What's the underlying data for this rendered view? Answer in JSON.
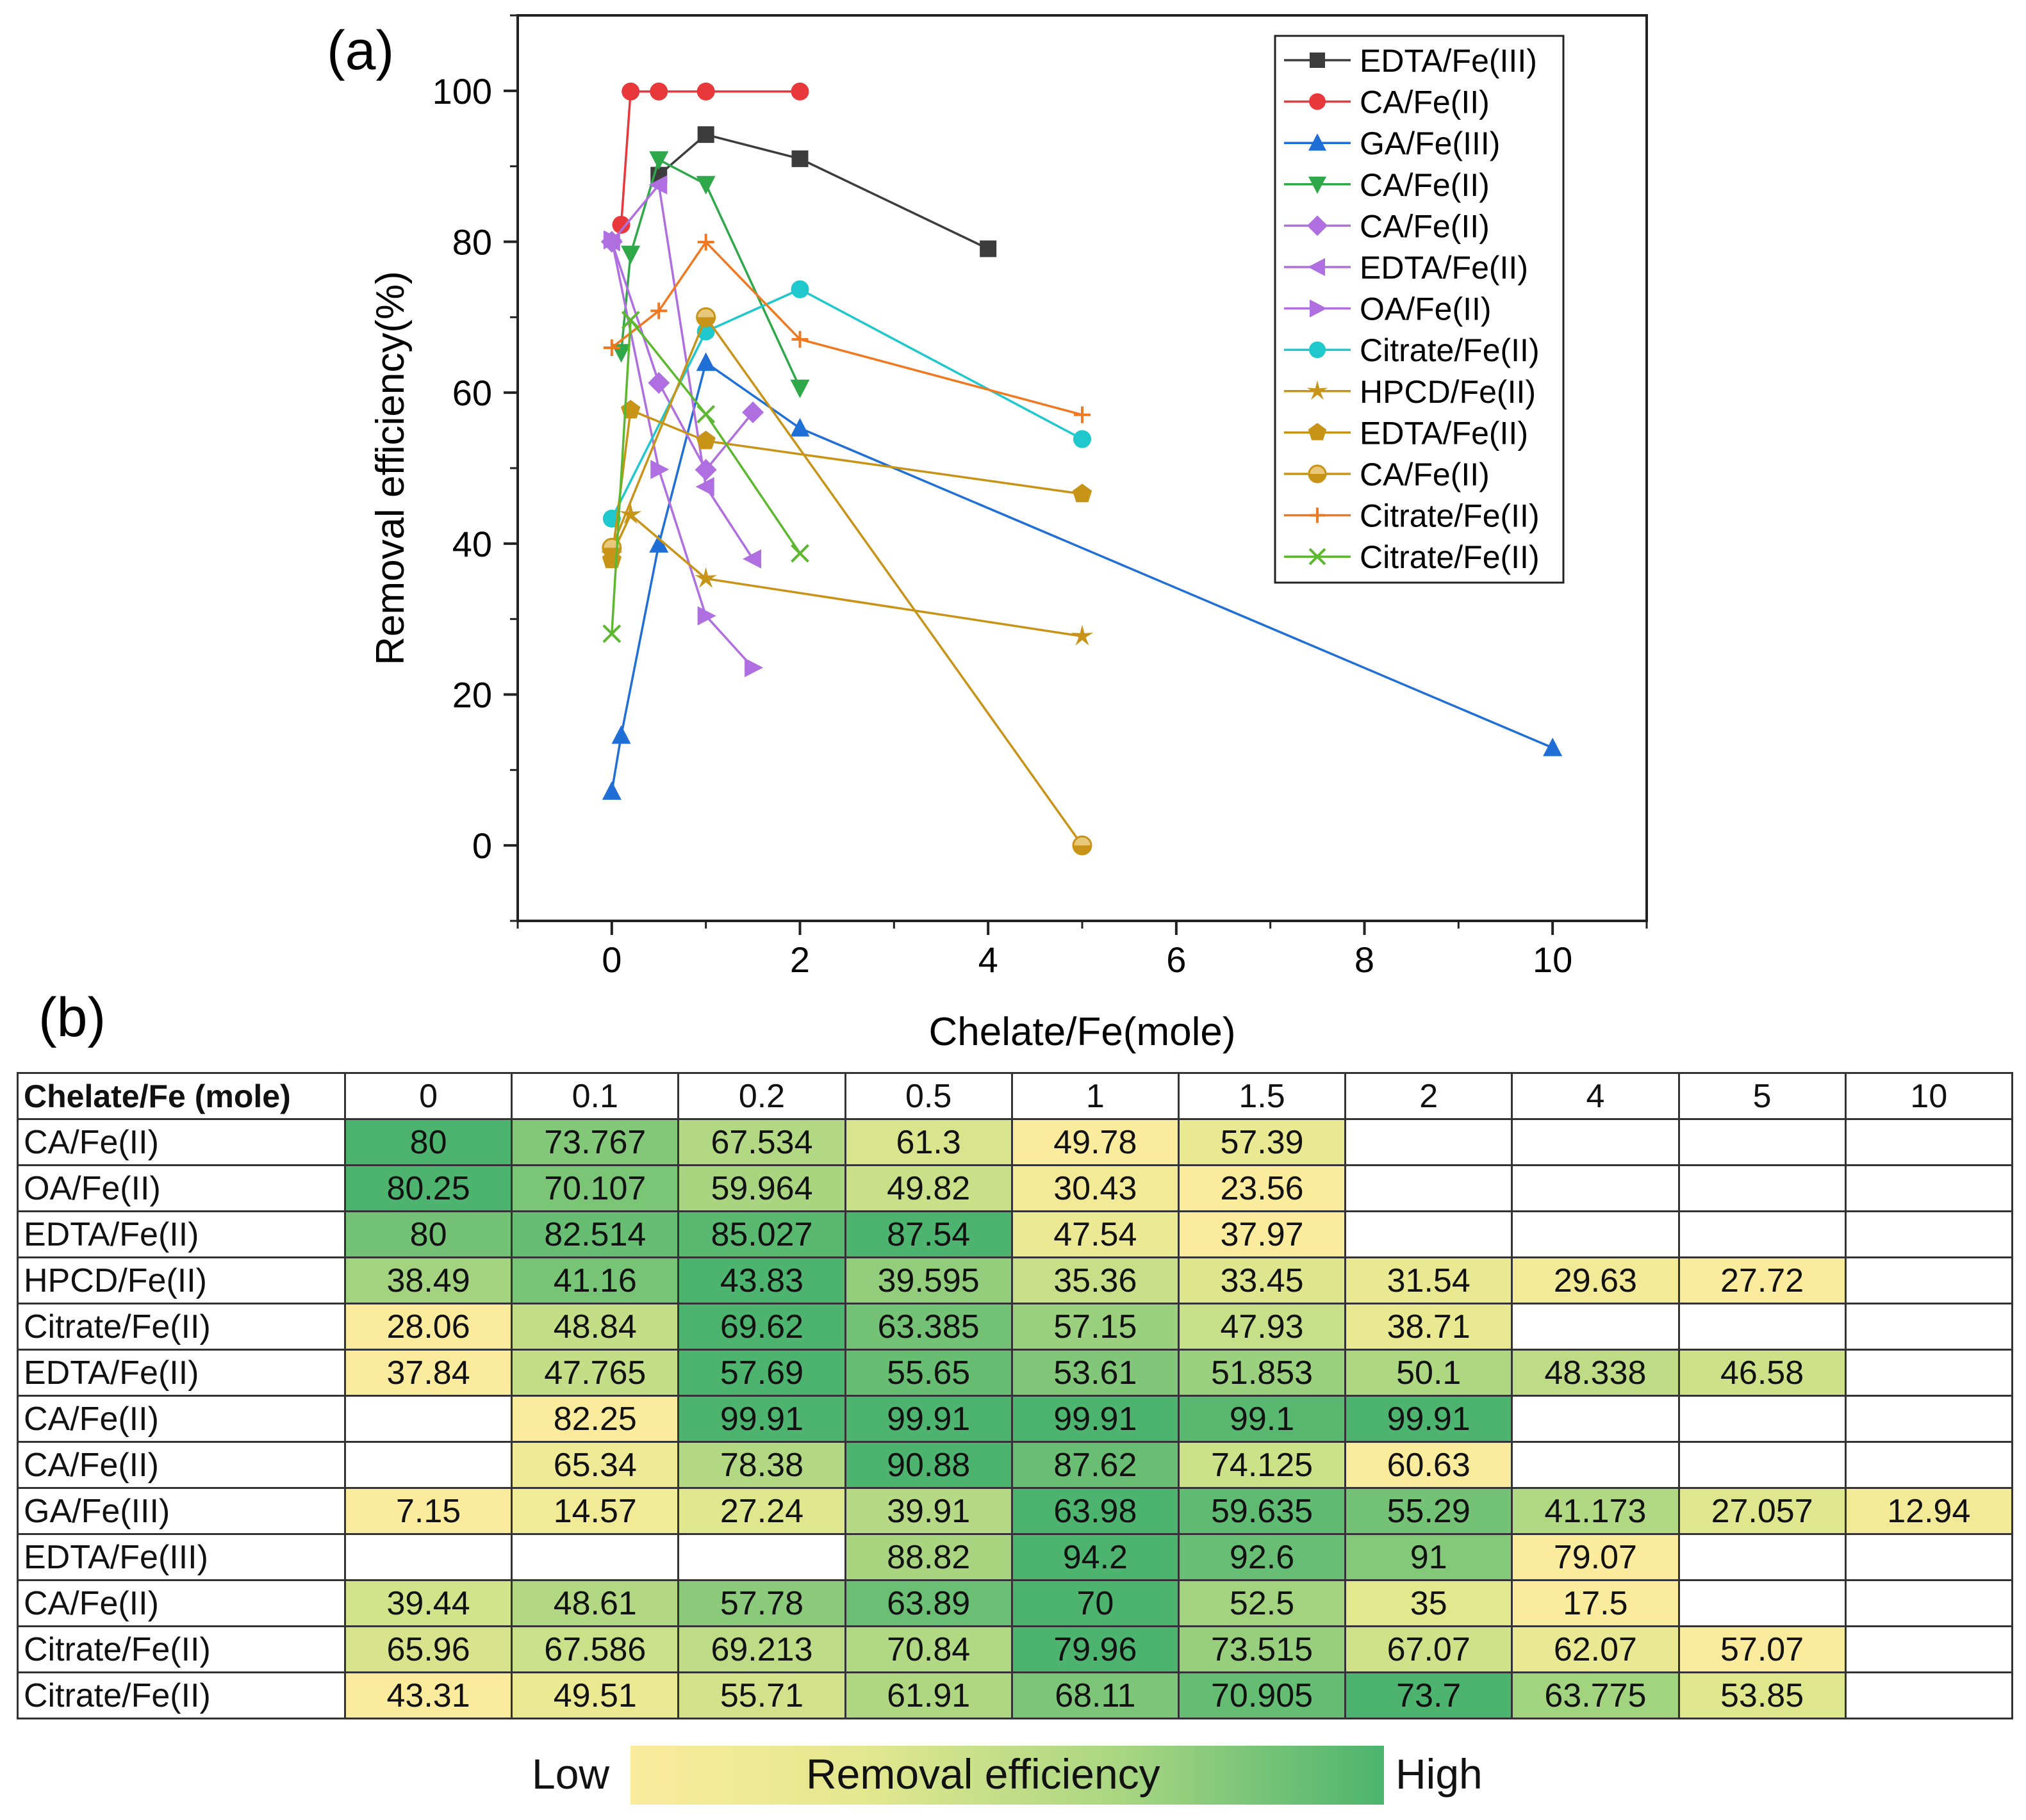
{
  "panel_a_label": "(a)",
  "panel_b_label": "(b)",
  "colors": {
    "black": "#3c3c3c",
    "red": "#e8383c",
    "blue": "#1f6fd6",
    "green": "#2fa84a",
    "purple": "#b06fe0",
    "cyan": "#1fc8cc",
    "gold": "#c89418",
    "orange": "#f07820",
    "lime": "#5cb82e"
  },
  "chart_data": [
    {
      "type": "line",
      "xlabel": "Chelate/Fe(mole)",
      "ylabel": "Removal efficiency(%)",
      "xlim": [
        -1,
        11
      ],
      "ylim": [
        -10,
        110
      ],
      "xticks": [
        0,
        2,
        4,
        6,
        8,
        10
      ],
      "yticks": [
        0,
        20,
        40,
        60,
        80,
        100
      ],
      "xtick_labels": [
        "0",
        "2",
        "4",
        "6",
        "8",
        "10"
      ],
      "ytick_labels": [
        "0",
        "20",
        "40",
        "60",
        "80",
        "100"
      ],
      "legend_position": "top-right",
      "series": [
        {
          "name": "EDTA/Fe(III)",
          "color": "#3c3c3c",
          "marker": "square",
          "x": [
            0.5,
            1,
            2,
            4
          ],
          "y": [
            88.82,
            94.2,
            91,
            79.07
          ]
        },
        {
          "name": "CA/Fe(II)",
          "color": "#e8383c",
          "marker": "circle",
          "x": [
            0.1,
            0.2,
            0.5,
            1,
            2
          ],
          "y": [
            82.25,
            99.91,
            99.91,
            99.91,
            99.91
          ]
        },
        {
          "name": "GA/Fe(III)",
          "color": "#1f6fd6",
          "marker": "triangle-up",
          "x": [
            0,
            0.1,
            0.5,
            1,
            2,
            10
          ],
          "y": [
            7.15,
            14.57,
            39.91,
            63.98,
            55.29,
            12.94
          ]
        },
        {
          "name": "CA/Fe(II)",
          "color": "#2fa84a",
          "marker": "triangle-down",
          "x": [
            0.1,
            0.2,
            0.5,
            1,
            2
          ],
          "y": [
            65.34,
            78.38,
            90.88,
            87.62,
            60.63
          ]
        },
        {
          "name": "CA/Fe(II)",
          "color": "#b06fe0",
          "marker": "diamond",
          "x": [
            0,
            0.5,
            1,
            1.5
          ],
          "y": [
            80,
            61.3,
            49.78,
            57.39
          ]
        },
        {
          "name": "EDTA/Fe(II)",
          "color": "#b06fe0",
          "marker": "triangle-left",
          "x": [
            0,
            0.5,
            1,
            1.5
          ],
          "y": [
            80,
            87.54,
            47.54,
            37.97
          ]
        },
        {
          "name": "OA/Fe(II)",
          "color": "#b06fe0",
          "marker": "triangle-right",
          "x": [
            0,
            0.5,
            1,
            1.5
          ],
          "y": [
            80.25,
            49.82,
            30.43,
            23.56
          ]
        },
        {
          "name": "Citrate/Fe(II)",
          "color": "#1fc8cc",
          "marker": "circle",
          "x": [
            0,
            1,
            2,
            5
          ],
          "y": [
            43.31,
            68.11,
            73.7,
            53.85
          ]
        },
        {
          "name": "HPCD/Fe(II)",
          "color": "#c89418",
          "marker": "star",
          "x": [
            0,
            0.2,
            1,
            5
          ],
          "y": [
            38.49,
            43.83,
            35.36,
            27.72
          ]
        },
        {
          "name": "EDTA/Fe(II)",
          "color": "#c89418",
          "marker": "pentagon",
          "x": [
            0,
            0.2,
            1,
            5
          ],
          "y": [
            37.84,
            57.69,
            53.61,
            46.58
          ]
        },
        {
          "name": "CA/Fe(II)",
          "color": "#c89418",
          "marker": "half-circle",
          "x": [
            0,
            1,
            5
          ],
          "y": [
            39.44,
            70,
            0
          ]
        },
        {
          "name": "Citrate/Fe(II)",
          "color": "#f07820",
          "marker": "plus",
          "x": [
            0,
            0.5,
            1,
            2,
            5
          ],
          "y": [
            65.96,
            70.84,
            79.96,
            67.07,
            57.07
          ]
        },
        {
          "name": "Citrate/Fe(II)",
          "color": "#5cb82e",
          "marker": "x",
          "x": [
            0,
            0.2,
            1,
            2
          ],
          "y": [
            28.06,
            69.62,
            57.15,
            38.71
          ]
        }
      ]
    },
    {
      "type": "heatmap",
      "corner_label": "Chelate/Fe (mole)",
      "columns": [
        "0",
        "0.1",
        "0.2",
        "0.5",
        "1",
        "1.5",
        "2",
        "4",
        "5",
        "10"
      ],
      "rows": [
        {
          "label": "CA/Fe(II)",
          "cells": [
            "80",
            "73.767",
            "67.534",
            "61.3",
            "49.78",
            "57.39",
            "",
            "",
            "",
            ""
          ]
        },
        {
          "label": "OA/Fe(II)",
          "cells": [
            "80.25",
            "70.107",
            "59.964",
            "49.82",
            "30.43",
            "23.56",
            "",
            "",
            "",
            ""
          ]
        },
        {
          "label": "EDTA/Fe(II)",
          "cells": [
            "80",
            "82.514",
            "85.027",
            "87.54",
            "47.54",
            "37.97",
            "",
            "",
            "",
            ""
          ]
        },
        {
          "label": "HPCD/Fe(II)",
          "cells": [
            "38.49",
            "41.16",
            "43.83",
            "39.595",
            "35.36",
            "33.45",
            "31.54",
            "29.63",
            "27.72",
            ""
          ]
        },
        {
          "label": "Citrate/Fe(II)",
          "cells": [
            "28.06",
            "48.84",
            "69.62",
            "63.385",
            "57.15",
            "47.93",
            "38.71",
            "",
            "",
            ""
          ]
        },
        {
          "label": "EDTA/Fe(II)",
          "cells": [
            "37.84",
            "47.765",
            "57.69",
            "55.65",
            "53.61",
            "51.853",
            "50.1",
            "48.338",
            "46.58",
            ""
          ]
        },
        {
          "label": "CA/Fe(II)",
          "cells": [
            "",
            "82.25",
            "99.91",
            "99.91",
            "99.91",
            "99.1",
            "99.91",
            "",
            "",
            ""
          ]
        },
        {
          "label": "CA/Fe(II)",
          "cells": [
            "",
            "65.34",
            "78.38",
            "90.88",
            "87.62",
            "74.125",
            "60.63",
            "",
            "",
            ""
          ]
        },
        {
          "label": "GA/Fe(III)",
          "cells": [
            "7.15",
            "14.57",
            "27.24",
            "39.91",
            "63.98",
            "59.635",
            "55.29",
            "41.173",
            "27.057",
            "12.94"
          ]
        },
        {
          "label": "EDTA/Fe(III)",
          "cells": [
            "",
            "",
            "",
            "88.82",
            "94.2",
            "92.6",
            "91",
            "79.07",
            "",
            ""
          ]
        },
        {
          "label": "CA/Fe(II)",
          "cells": [
            "39.44",
            "48.61",
            "57.78",
            "63.89",
            "70",
            "52.5",
            "35",
            "17.5",
            "",
            ""
          ]
        },
        {
          "label": "Citrate/Fe(II)",
          "cells": [
            "65.96",
            "67.586",
            "69.213",
            "70.84",
            "79.96",
            "73.515",
            "67.07",
            "62.07",
            "57.07",
            ""
          ]
        },
        {
          "label": "Citrate/Fe(II)",
          "cells": [
            "43.31",
            "49.51",
            "55.71",
            "61.91",
            "68.11",
            "70.905",
            "73.7",
            "63.775",
            "53.85",
            ""
          ]
        }
      ],
      "colorbar": {
        "low_label": "Low",
        "title": "Removal efficiency",
        "high_label": "High",
        "low_color": "#fbeb9c",
        "high_color": "#4cb46e"
      }
    }
  ]
}
